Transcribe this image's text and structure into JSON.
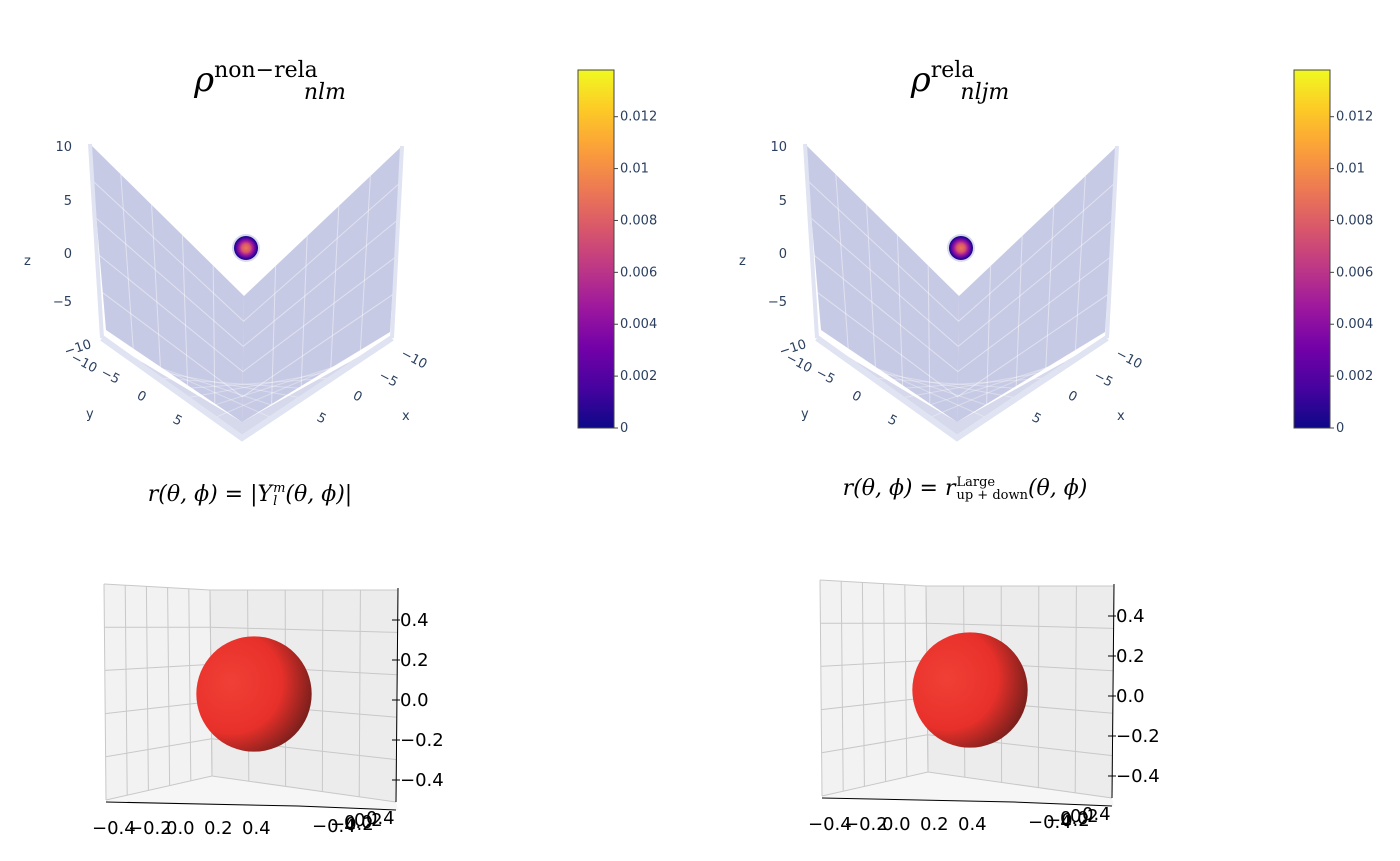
{
  "panels": [
    {
      "title_base": "ρ",
      "title_sup": "non−rela",
      "title_sub": "nlm",
      "formula_lhs": "r(θ, ϕ) = ",
      "formula_rhs": "|Y",
      "formula_rhs_sup": "m",
      "formula_rhs_sub": "l",
      "formula_rhs_tail": "(θ, ϕ)|",
      "axes3d": {
        "x_title": "x",
        "y_title": "y",
        "z_title": "z",
        "z_ticks": [
          "10",
          "5",
          "0",
          "−5",
          "−10"
        ],
        "x_ticks": [
          "−10",
          "−5",
          "0",
          "5"
        ],
        "y_ticks": [
          "−10",
          "−5",
          "0",
          "5"
        ]
      },
      "colorbar": {
        "ticks": [
          "0.012",
          "0.01",
          "0.008",
          "0.006",
          "0.004",
          "0.002",
          "0"
        ]
      },
      "sphere": {
        "z_ticks": [
          "0.4",
          "0.2",
          "0.0",
          "−0.2",
          "−0.4"
        ],
        "x_ticks": [
          "−0.4",
          "−0.2",
          "0.0",
          "0.2",
          "0.4"
        ],
        "y_ticks": [
          "−0.4",
          "−0.2",
          "0.0",
          "0.2",
          "0.4"
        ]
      }
    },
    {
      "title_base": "ρ",
      "title_sup": "rela",
      "title_sub": "nljm",
      "formula_lhs": "r(θ, ϕ) = r",
      "formula_rhs": "",
      "formula_rhs_sup": "Large",
      "formula_rhs_sub": "up + down",
      "formula_rhs_tail": "(θ, ϕ)",
      "axes3d": {
        "x_title": "x",
        "y_title": "y",
        "z_title": "z",
        "z_ticks": [
          "10",
          "5",
          "0",
          "−5",
          "−10"
        ],
        "x_ticks": [
          "−10",
          "−5",
          "0",
          "5"
        ],
        "y_ticks": [
          "−10",
          "−5",
          "0",
          "5"
        ]
      },
      "colorbar": {
        "ticks": [
          "0.012",
          "0.01",
          "0.008",
          "0.006",
          "0.004",
          "0.002",
          "0"
        ]
      },
      "sphere": {
        "z_ticks": [
          "0.4",
          "0.2",
          "0.0",
          "−0.2",
          "−0.4"
        ],
        "x_ticks": [
          "−0.4",
          "−0.2",
          "0.0",
          "0.2",
          "0.4"
        ],
        "y_ticks": [
          "−0.4",
          "−0.2",
          "0.0",
          "0.2",
          "0.4"
        ]
      }
    }
  ],
  "colors": {
    "volume_fill": "#b4b8db",
    "grid": "#ffffff",
    "sphere": "#e8302a",
    "colorscale": [
      "#0d0887",
      "#46039f",
      "#7201a8",
      "#9c179e",
      "#bd3786",
      "#d8576b",
      "#ed7953",
      "#fb9f3a",
      "#fdca26",
      "#f0f921"
    ]
  },
  "chart_data": [
    {
      "type": "heatmap",
      "title": "ρ nlm non−rela",
      "xlabel": "x",
      "ylabel": "y",
      "zlabel": "z",
      "xlim": [
        -10,
        10
      ],
      "ylim": [
        -10,
        10
      ],
      "zlim": [
        -10,
        10
      ],
      "colorbar_range": [
        0,
        0.0138
      ],
      "colorbar_ticks": [
        0,
        0.002,
        0.004,
        0.006,
        0.008,
        0.01,
        0.012
      ],
      "peak_location": [
        0,
        0,
        0
      ],
      "peak_value": 0.012
    },
    {
      "type": "heatmap",
      "title": "ρ nljm rela",
      "xlabel": "x",
      "ylabel": "y",
      "zlabel": "z",
      "xlim": [
        -10,
        10
      ],
      "ylim": [
        -10,
        10
      ],
      "zlim": [
        -10,
        10
      ],
      "colorbar_range": [
        0,
        0.0138
      ],
      "colorbar_ticks": [
        0,
        0.002,
        0.004,
        0.006,
        0.008,
        0.01,
        0.012
      ],
      "peak_location": [
        0,
        0,
        0
      ],
      "peak_value": 0.012
    },
    {
      "type": "scatter",
      "title": "r(θ, ϕ) = |Y_l^m(θ, ϕ)|",
      "shape": "sphere",
      "radius": 0.28,
      "xlim": [
        -0.5,
        0.5
      ],
      "ylim": [
        -0.5,
        0.5
      ],
      "zlim": [
        -0.5,
        0.5
      ]
    },
    {
      "type": "scatter",
      "title": "r(θ, ϕ) = r_up+down^Large(θ, ϕ)",
      "shape": "sphere",
      "radius": 0.28,
      "xlim": [
        -0.5,
        0.5
      ],
      "ylim": [
        -0.5,
        0.5
      ],
      "zlim": [
        -0.5,
        0.5
      ]
    }
  ]
}
